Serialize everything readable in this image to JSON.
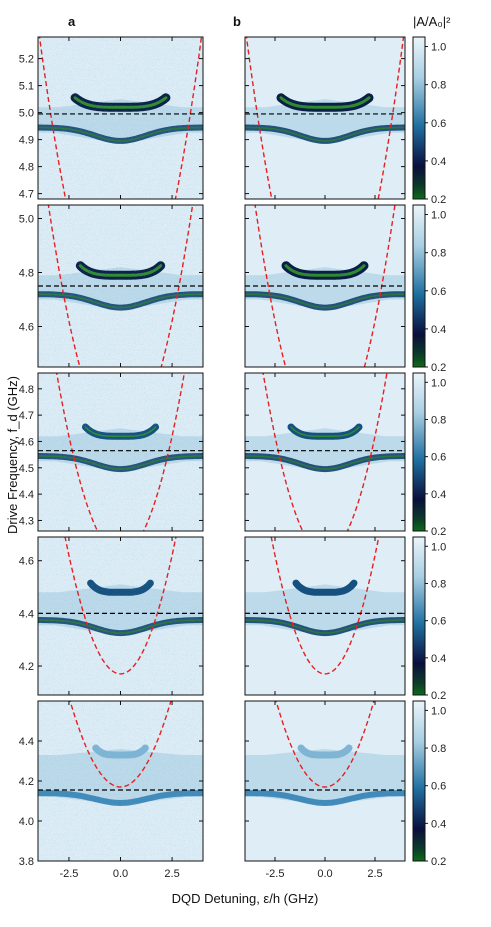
{
  "chart_data": {
    "type": "heatmap",
    "panel_letters": [
      "a",
      "b"
    ],
    "xlabel": "DQD Detuning, ε/h (GHz)",
    "ylabel": "Drive Frequency, f_d (GHz)",
    "colorbar_label": "|A/A₀|²",
    "colorbar_ticks": [
      "0.2",
      "0.4",
      "0.6",
      "0.8",
      "1.0"
    ],
    "colorbar_range": [
      0.2,
      1.05
    ],
    "xlim": [
      -4,
      4
    ],
    "x_ticks": [
      "-2.5",
      "0.0",
      "2.5"
    ],
    "x_tick_values": [
      -2.5,
      0.0,
      2.5
    ],
    "colormap": [
      "#0b6b18",
      "#0a0f3c",
      "#1f6fa0",
      "#a9cfe3",
      "#eaf4fa"
    ],
    "curve_color": "#e62020",
    "resonator_line_color": "#000000",
    "rows": [
      {
        "ylim": [
          4.68,
          5.28
        ],
        "y_ticks": [
          "4.7",
          "4.8",
          "4.9",
          "5.0",
          "5.1",
          "5.2"
        ],
        "y_tick_values": [
          4.7,
          4.8,
          4.9,
          5.0,
          5.1,
          5.2
        ],
        "resonator_freq": 4.995,
        "upper_band_center": 5.02,
        "lower_band_center": 4.945,
        "parabola_min": 4.17,
        "parabola_curvature": 0.072
      },
      {
        "ylim": [
          4.45,
          5.05
        ],
        "y_ticks": [
          "4.6",
          "4.8",
          "5.0"
        ],
        "y_tick_values": [
          4.6,
          4.8,
          5.0
        ],
        "resonator_freq": 4.75,
        "upper_band_center": 4.79,
        "lower_band_center": 4.72,
        "parabola_min": 4.17,
        "parabola_curvature": 0.072
      },
      {
        "ylim": [
          4.26,
          4.86
        ],
        "y_ticks": [
          "4.3",
          "4.4",
          "4.5",
          "4.6",
          "4.7",
          "4.8"
        ],
        "y_tick_values": [
          4.3,
          4.4,
          4.5,
          4.6,
          4.7,
          4.8
        ],
        "resonator_freq": 4.565,
        "upper_band_center": 4.62,
        "lower_band_center": 4.545,
        "parabola_min": 4.17,
        "parabola_curvature": 0.072
      },
      {
        "ylim": [
          4.09,
          4.69
        ],
        "y_ticks": [
          "4.2",
          "4.4",
          "4.6"
        ],
        "y_tick_values": [
          4.2,
          4.4,
          4.6
        ],
        "resonator_freq": 4.4,
        "upper_band_center": 4.48,
        "lower_band_center": 4.375,
        "parabola_min": 4.17,
        "parabola_curvature": 0.072
      },
      {
        "ylim": [
          3.8,
          4.6
        ],
        "y_ticks": [
          "3.8",
          "4.0",
          "4.2",
          "4.4"
        ],
        "y_tick_values": [
          3.8,
          4.0,
          4.2,
          4.4
        ],
        "resonator_freq": 4.155,
        "upper_band_center": 4.33,
        "lower_band_center": 4.14,
        "parabola_min": 4.17,
        "parabola_curvature": 0.072
      }
    ]
  }
}
